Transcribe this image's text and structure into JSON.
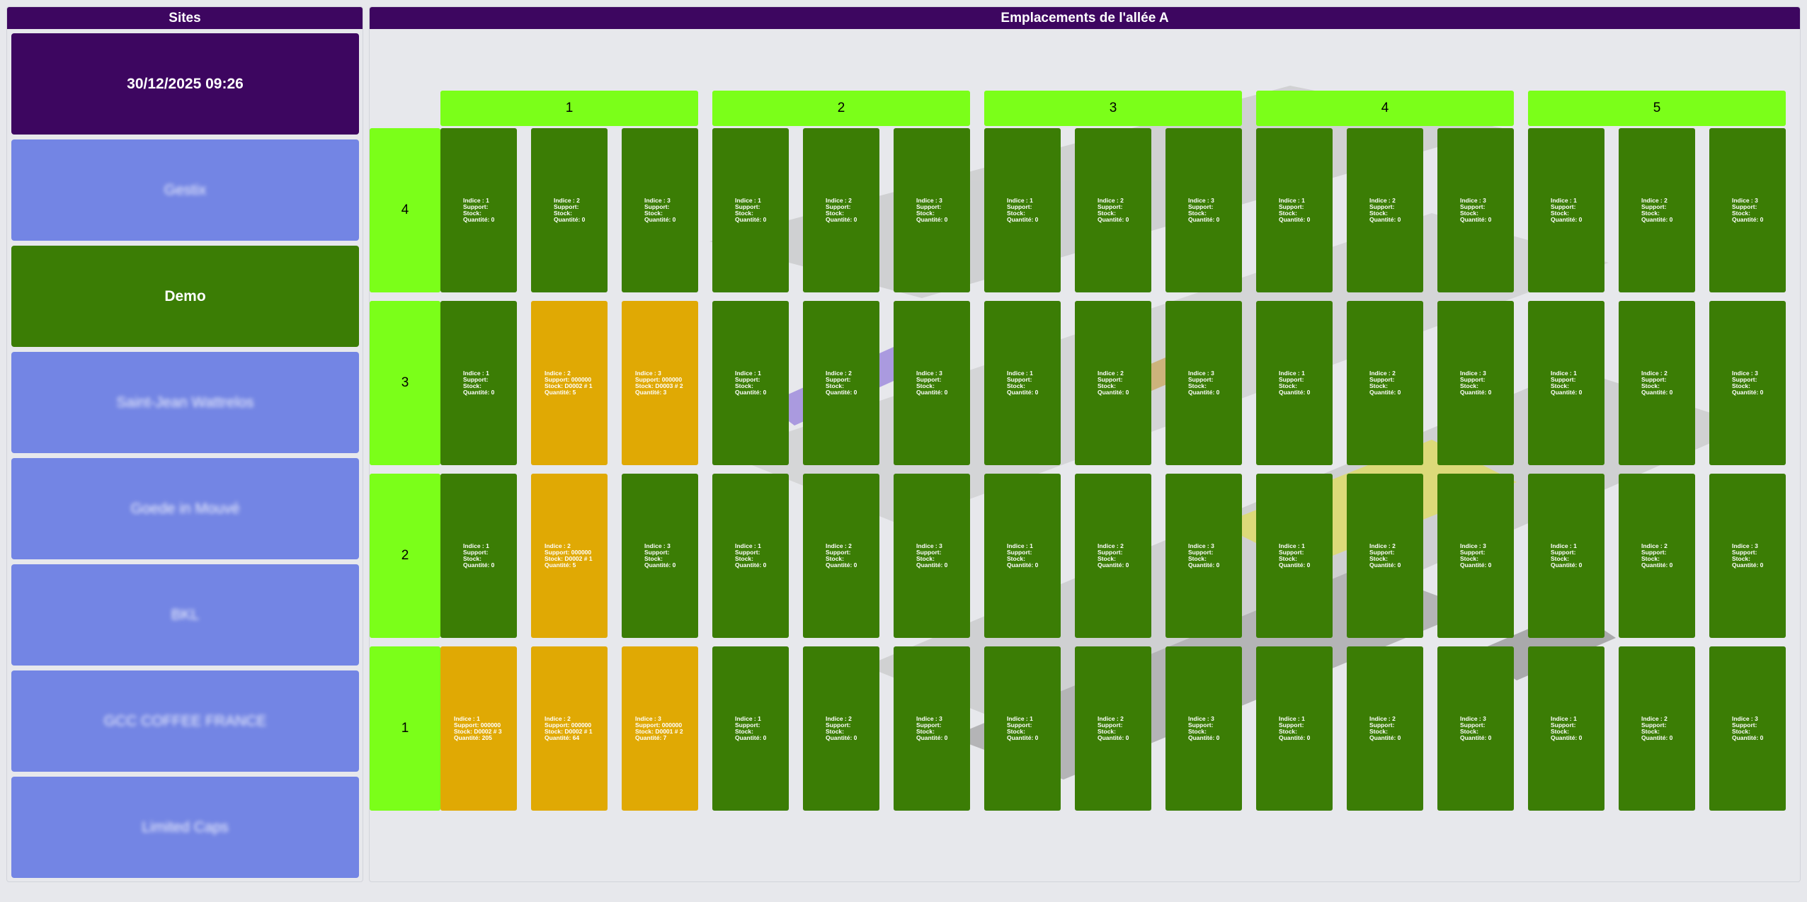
{
  "sites": {
    "header": "Sites",
    "datetime": "30/12/2025 09:26",
    "items": [
      {
        "label": "Gestix",
        "state": "idle"
      },
      {
        "label": "Demo",
        "state": "active"
      },
      {
        "label": "Saint-Jean Wattrelos",
        "state": "idle"
      },
      {
        "label": "Goede in Mouvé",
        "state": "idle"
      },
      {
        "label": "BKL",
        "state": "idle"
      },
      {
        "label": "GCC COFFEE FRANCE",
        "state": "idle"
      },
      {
        "label": "Limited Caps",
        "state": "idle"
      }
    ]
  },
  "aisle": {
    "header": "Emplacements de l'allée A",
    "columns": [
      "1",
      "2",
      "3",
      "4",
      "5"
    ],
    "levels": [
      "4",
      "3",
      "2",
      "1"
    ],
    "labels": {
      "index": "Indice : ",
      "support": "Support: ",
      "stock": "Stock: ",
      "quantity": "Quantité: "
    },
    "filled": {
      "3-1-2": {
        "support": "000000",
        "stock": "D0002 # 1",
        "quantity": "5"
      },
      "3-1-3": {
        "support": "000000",
        "stock": "D0003 # 2",
        "quantity": "3"
      },
      "2-1-2": {
        "support": "000000",
        "stock": "D0002 # 1",
        "quantity": "5"
      },
      "1-1-1": {
        "support": "000000",
        "stock": "D0002 # 3",
        "quantity": "205"
      },
      "1-1-2": {
        "support": "000000",
        "stock": "D0002 # 1",
        "quantity": "64"
      },
      "1-1-3": {
        "support": "000000",
        "stock": "D0001 # 2",
        "quantity": "7"
      }
    },
    "empty_quantity": "0",
    "colors": {
      "empty": "#3b7d05",
      "filled": "#e0a904",
      "header": "#7bff19",
      "accent": "#3d0660",
      "idle_site": "#7385e4"
    }
  }
}
